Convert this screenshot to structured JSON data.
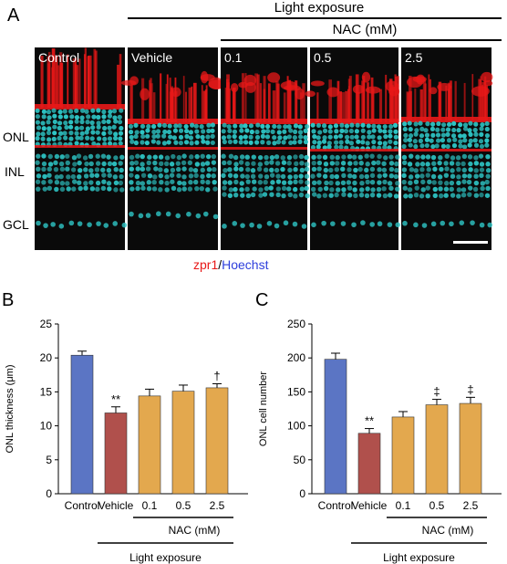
{
  "panel_a": {
    "letter": "A",
    "header_light": "Light exposure",
    "header_nac": "NAC (mM)",
    "panels": [
      "Control",
      "Vehicle",
      "0.1",
      "0.5",
      "2.5"
    ],
    "layers": [
      "ONL",
      "INL",
      "GCL"
    ],
    "legend_red": "zpr1",
    "legend_sep": "/",
    "legend_blue": "Hoechst",
    "colors": {
      "red": "#e81818",
      "cyan": "#2ec6c6",
      "blue": "#2e3fdc"
    }
  },
  "chart_data": [
    {
      "type": "bar",
      "panel_letter": "B",
      "categories": [
        "Control",
        "Vehicle",
        "0.1",
        "0.5",
        "2.5"
      ],
      "values": [
        20.4,
        11.9,
        14.4,
        15.1,
        15.6
      ],
      "errors": [
        0.6,
        0.9,
        1.0,
        0.9,
        0.6
      ],
      "significance": [
        "",
        "**",
        "",
        "",
        "†"
      ],
      "ylabel": "ONL thickness (μm)",
      "ylim": [
        0,
        25
      ],
      "yticks": [
        0,
        5,
        10,
        15,
        20,
        25
      ],
      "group_nac_label": "NAC (mM)",
      "group_light_label": "Light exposure",
      "colors": [
        "#5b75c4",
        "#b0504c",
        "#e3a84e",
        "#e3a84e",
        "#e3a84e"
      ]
    },
    {
      "type": "bar",
      "panel_letter": "C",
      "categories": [
        "Control",
        "Vehicle",
        "0.1",
        "0.5",
        "2.5"
      ],
      "values": [
        198,
        89,
        113,
        131,
        133
      ],
      "errors": [
        9,
        7,
        8,
        8,
        9
      ],
      "significance": [
        "",
        "**",
        "",
        "‡",
        "‡"
      ],
      "ylabel": "ONL cell number",
      "ylim": [
        0,
        250
      ],
      "yticks": [
        0,
        50,
        100,
        150,
        200,
        250
      ],
      "group_nac_label": "NAC (mM)",
      "group_light_label": "Light exposure",
      "colors": [
        "#5b75c4",
        "#b0504c",
        "#e3a84e",
        "#e3a84e",
        "#e3a84e"
      ]
    }
  ]
}
